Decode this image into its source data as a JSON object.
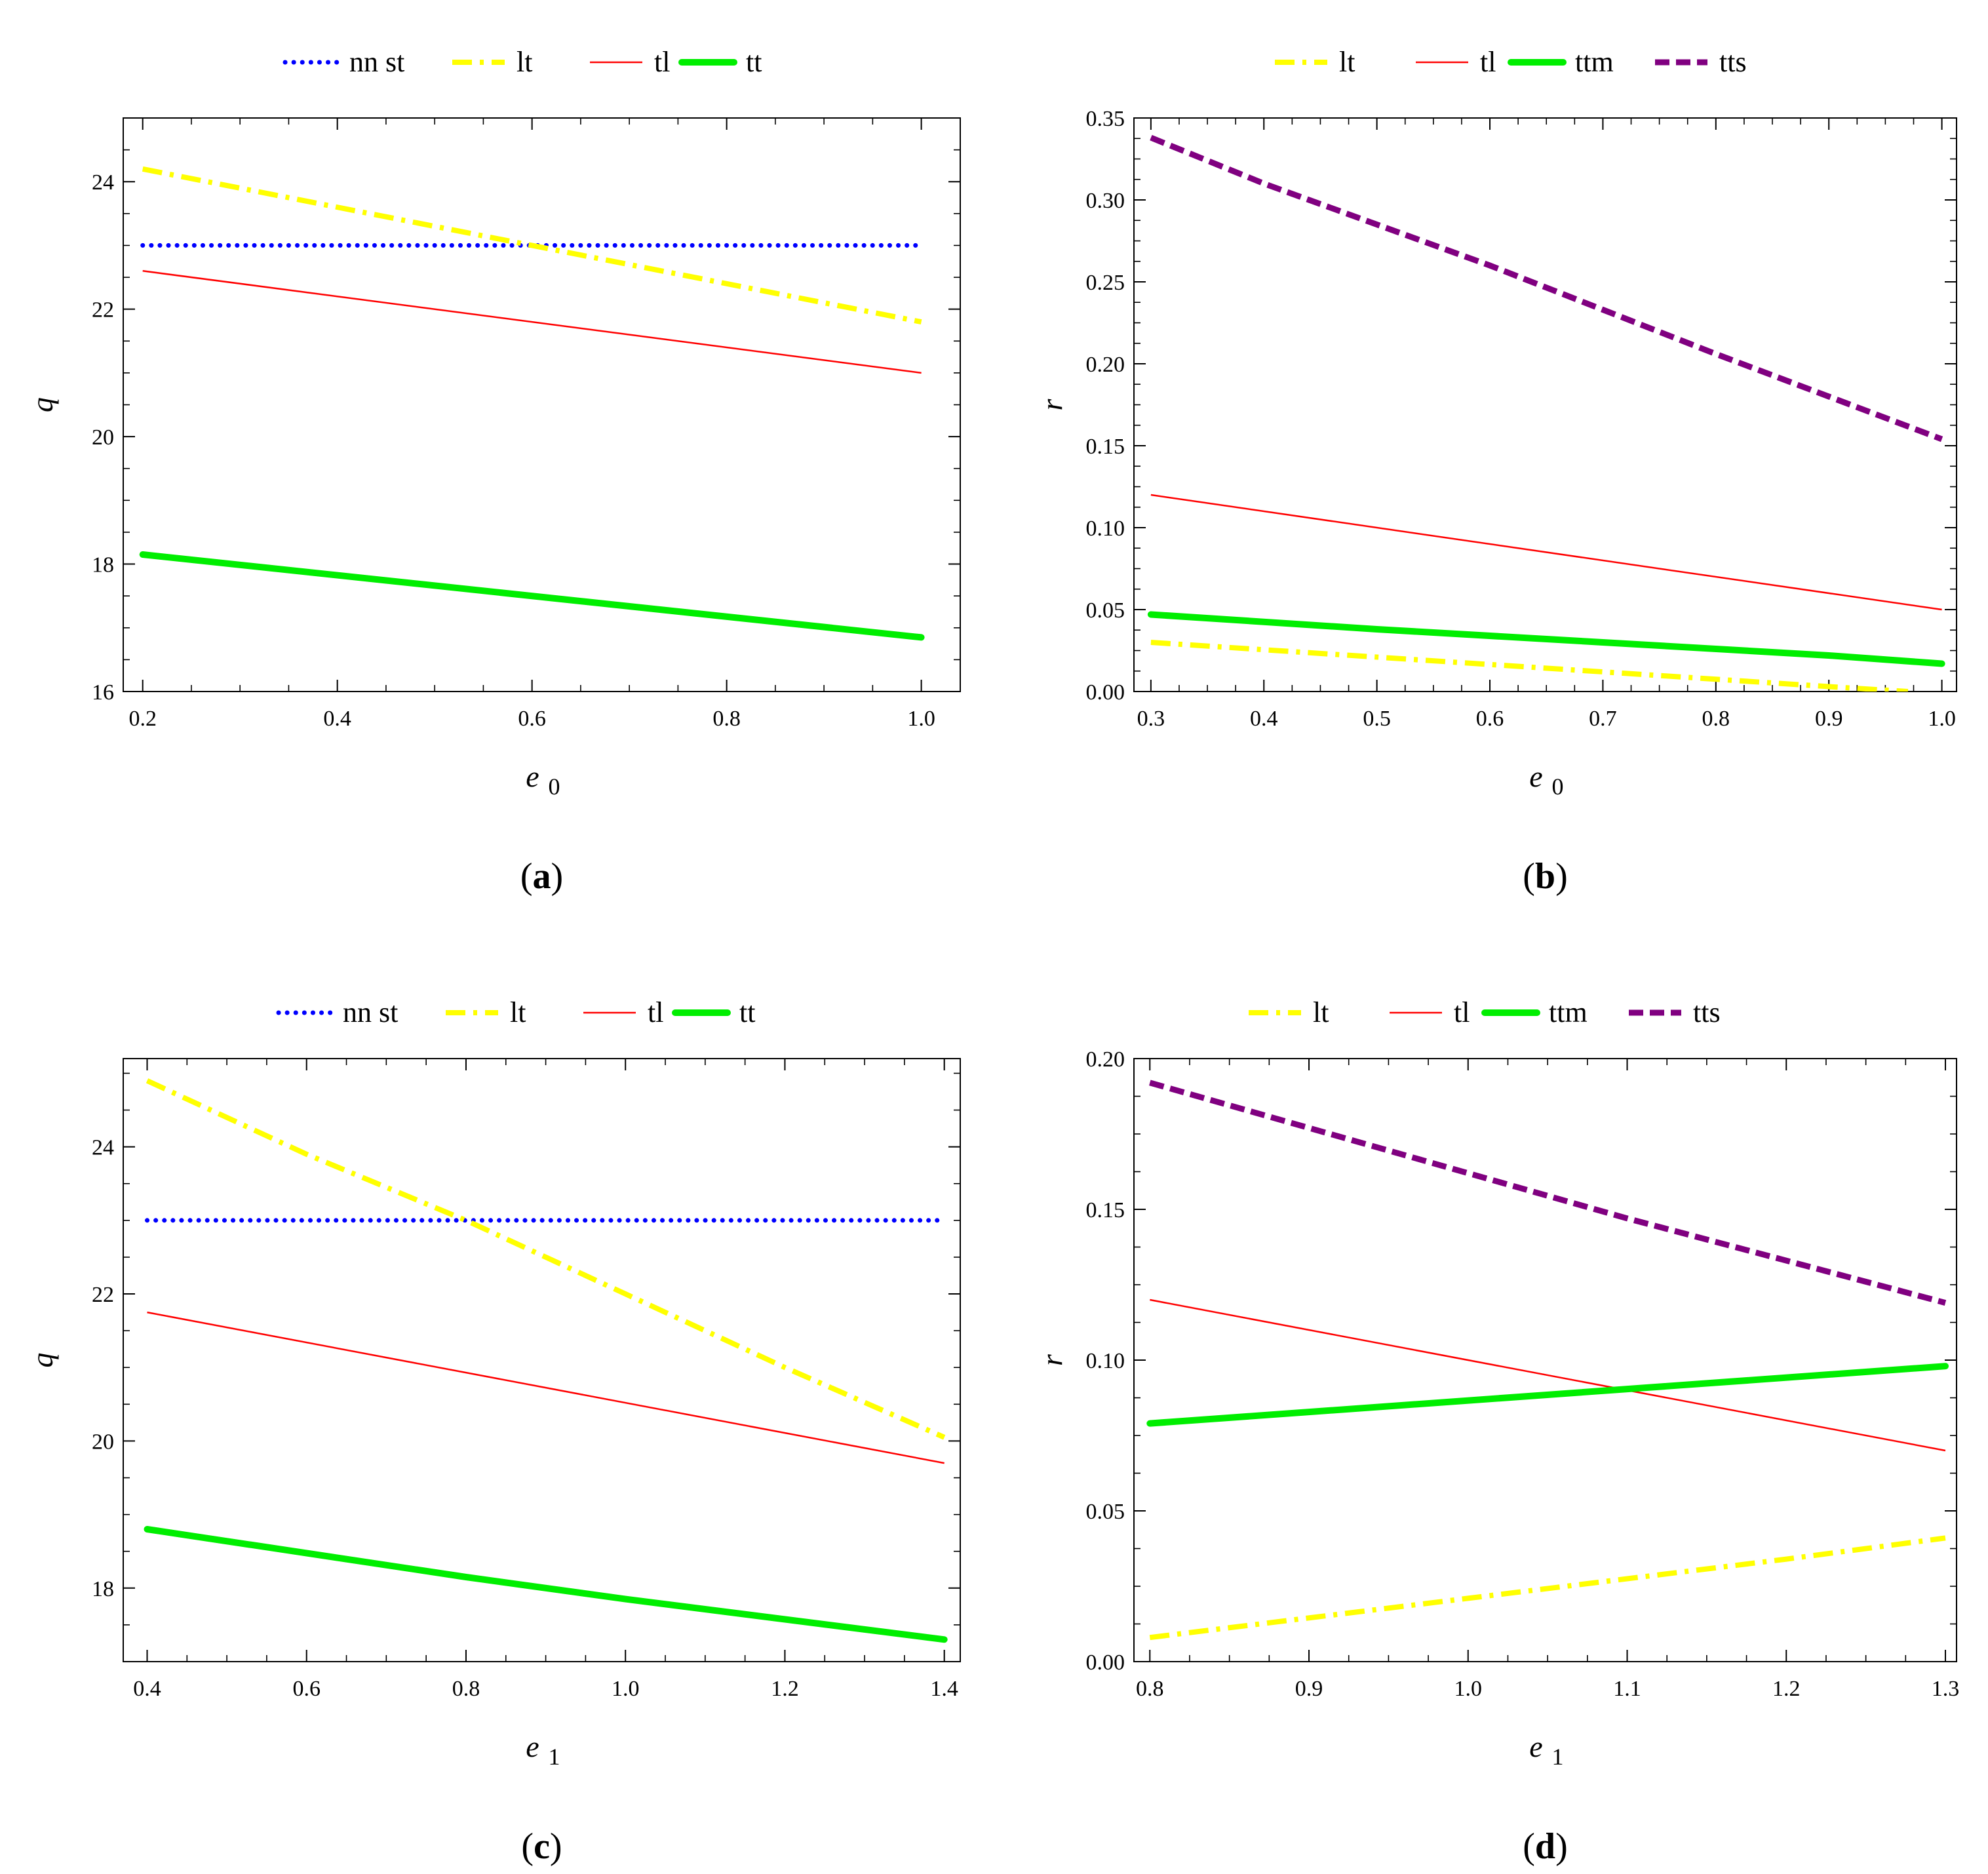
{
  "chart_data": [
    {
      "id": "a",
      "type": "line",
      "caption": {
        "open": "(",
        "letter": "a",
        "close": ")"
      },
      "xlabel": {
        "main": "e",
        "sub": "0"
      },
      "ylabel": "q",
      "xlim": [
        0.18,
        1.04
      ],
      "ylim": [
        16,
        25
      ],
      "xticks": [
        0.2,
        0.4,
        0.6,
        0.8,
        1.0
      ],
      "xtick_labels": [
        "0.2",
        "0.4",
        "0.6",
        "0.8",
        "1.0"
      ],
      "yticks": [
        16,
        18,
        20,
        22,
        24
      ],
      "ytick_labels": [
        "16",
        "18",
        "20",
        "22",
        "24"
      ],
      "series": [
        {
          "name": "nn st",
          "color": "#0000ff",
          "style": "dotted",
          "x": [
            0.2,
            1.0
          ],
          "y": [
            23.0,
            23.0
          ]
        },
        {
          "name": "lt",
          "color": "#ffff00",
          "style": "dashdot",
          "x": [
            0.2,
            1.0
          ],
          "y": [
            24.2,
            21.8
          ]
        },
        {
          "name": "tl",
          "color": "#ff0000",
          "style": "thin",
          "x": [
            0.2,
            1.0
          ],
          "y": [
            22.6,
            21.0
          ]
        },
        {
          "name": "tt",
          "color": "#00ee00",
          "style": "thick",
          "x": [
            0.2,
            1.0
          ],
          "y": [
            18.15,
            16.85
          ]
        }
      ]
    },
    {
      "id": "b",
      "type": "line",
      "caption": {
        "open": "(",
        "letter": "b",
        "close": ")"
      },
      "xlabel": {
        "main": "e",
        "sub": "0"
      },
      "ylabel": "r",
      "xlim": [
        0.285,
        1.013
      ],
      "ylim": [
        0,
        0.35
      ],
      "xticks": [
        0.3,
        0.4,
        0.5,
        0.6,
        0.7,
        0.8,
        0.9,
        1.0
      ],
      "xtick_labels": [
        "0.3",
        "0.4",
        "0.5",
        "0.6",
        "0.7",
        "0.8",
        "0.9",
        "1.0"
      ],
      "yticks": [
        0,
        0.05,
        0.1,
        0.15,
        0.2,
        0.25,
        0.3,
        0.35
      ],
      "ytick_labels": [
        "0.00",
        "0.05",
        "0.10",
        "0.15",
        "0.20",
        "0.25",
        "0.30",
        "0.35"
      ],
      "series": [
        {
          "name": "lt",
          "color": "#ffff00",
          "style": "dashdot",
          "x": [
            0.3,
            0.5,
            0.7,
            0.9,
            0.97
          ],
          "y": [
            0.03,
            0.021,
            0.012,
            0.003,
            0.0
          ]
        },
        {
          "name": "tl",
          "color": "#ff0000",
          "style": "thin",
          "x": [
            0.3,
            1.0
          ],
          "y": [
            0.12,
            0.05
          ]
        },
        {
          "name": "ttm",
          "color": "#00ee00",
          "style": "thick",
          "x": [
            0.3,
            0.5,
            0.7,
            0.9,
            1.0
          ],
          "y": [
            0.047,
            0.038,
            0.03,
            0.022,
            0.017
          ]
        },
        {
          "name": "tts",
          "color": "#800080",
          "style": "dashed",
          "x": [
            0.3,
            0.4,
            0.5,
            0.6,
            0.7,
            0.8,
            0.9,
            1.0
          ],
          "y": [
            0.338,
            0.31,
            0.285,
            0.26,
            0.233,
            0.206,
            0.18,
            0.154
          ]
        }
      ]
    },
    {
      "id": "c",
      "type": "line",
      "caption": {
        "open": "(",
        "letter": "c",
        "close": ")"
      },
      "xlabel": {
        "main": "e",
        "sub": "1"
      },
      "ylabel": "q",
      "xlim": [
        0.37,
        1.42
      ],
      "ylim": [
        17,
        25.2
      ],
      "xticks": [
        0.4,
        0.6,
        0.8,
        1.0,
        1.2,
        1.4
      ],
      "xtick_labels": [
        "0.4",
        "0.6",
        "0.8",
        "1.0",
        "1.2",
        "1.4"
      ],
      "yticks": [
        18,
        20,
        22,
        24
      ],
      "ytick_labels": [
        "18",
        "20",
        "22",
        "24"
      ],
      "series": [
        {
          "name": "nn st",
          "color": "#0000ff",
          "style": "dotted",
          "x": [
            0.4,
            1.4
          ],
          "y": [
            23.0,
            23.0
          ]
        },
        {
          "name": "lt",
          "color": "#ffff00",
          "style": "dashdot",
          "x": [
            0.4,
            0.6,
            0.8,
            1.0,
            1.2,
            1.4
          ],
          "y": [
            24.9,
            23.9,
            23.0,
            22.0,
            21.0,
            20.05
          ]
        },
        {
          "name": "tl",
          "color": "#ff0000",
          "style": "thin",
          "x": [
            0.4,
            1.4
          ],
          "y": [
            21.75,
            19.7
          ]
        },
        {
          "name": "tt",
          "color": "#00ee00",
          "style": "thick",
          "x": [
            0.4,
            0.8,
            1.0,
            1.4
          ],
          "y": [
            18.8,
            18.15,
            17.85,
            17.3
          ]
        }
      ]
    },
    {
      "id": "d",
      "type": "line",
      "caption": {
        "open": "(",
        "letter": "d",
        "close": ")"
      },
      "xlabel": {
        "main": "e",
        "sub": "1"
      },
      "ylabel": "r",
      "xlim": [
        0.79,
        1.307
      ],
      "ylim": [
        0,
        0.2
      ],
      "xticks": [
        0.8,
        0.9,
        1.0,
        1.1,
        1.2,
        1.3
      ],
      "xtick_labels": [
        "0.8",
        "0.9",
        "1.0",
        "1.1",
        "1.2",
        "1.3"
      ],
      "yticks": [
        0,
        0.05,
        0.1,
        0.15,
        0.2
      ],
      "ytick_labels": [
        "0.00",
        "0.05",
        "0.10",
        "0.15",
        "0.20"
      ],
      "series": [
        {
          "name": "lt",
          "color": "#ffff00",
          "style": "dashdot",
          "x": [
            0.8,
            1.0,
            1.2,
            1.3
          ],
          "y": [
            0.008,
            0.021,
            0.034,
            0.041
          ]
        },
        {
          "name": "tl",
          "color": "#ff0000",
          "style": "thin",
          "x": [
            0.8,
            1.3
          ],
          "y": [
            0.12,
            0.07
          ]
        },
        {
          "name": "ttm",
          "color": "#00ee00",
          "style": "thick",
          "x": [
            0.8,
            1.3
          ],
          "y": [
            0.079,
            0.098
          ]
        },
        {
          "name": "tts",
          "color": "#800080",
          "style": "dashed",
          "x": [
            0.8,
            0.9,
            1.0,
            1.1,
            1.2,
            1.3
          ],
          "y": [
            0.192,
            0.177,
            0.162,
            0.147,
            0.133,
            0.119
          ]
        }
      ]
    }
  ]
}
